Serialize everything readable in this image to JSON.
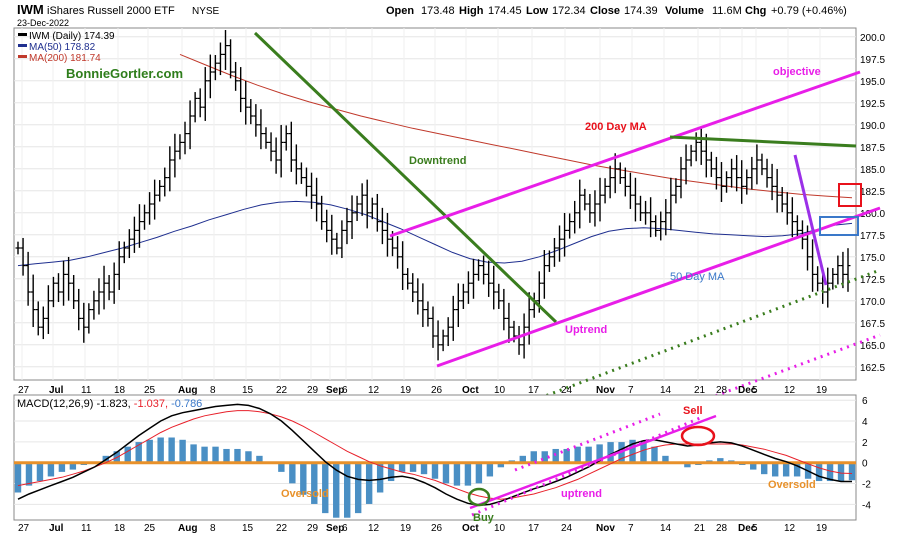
{
  "header": {
    "symbol": "IWM",
    "name": "iShares Russell 2000 ETF",
    "exchange": "NYSE",
    "date": "23-Dec-2022",
    "quote": {
      "open_label": "Open",
      "open": "173.48",
      "high_label": "High",
      "high": "174.45",
      "low_label": "Low",
      "low": "172.34",
      "close_label": "Close",
      "close": "174.39",
      "volume_label": "Volume",
      "volume": "11.6M",
      "chg_label": "Chg",
      "chg": "+0.79 (+0.46%)"
    }
  },
  "legend": {
    "price": "IWM (Daily) 174.39",
    "ma50": "MA(50) 178.82",
    "ma200": "MA(200) 181.74"
  },
  "watermark": "BonnieGortler.com",
  "annotations": {
    "objective": "objective",
    "ma200": "200 Day MA",
    "downtrend": "Downtrend",
    "uptrend": "Uptrend",
    "ma50": "50 Day MA",
    "sell": "Sell",
    "buy": "Buy",
    "macd_uptrend": "uptrend",
    "oversold_left": "Oversold",
    "oversold_right": "Oversold"
  },
  "colors": {
    "up_bar": "#000000",
    "ma50": "#1f2f8f",
    "ma200": "#c0392b",
    "trend_magenta": "#e81ee8",
    "trend_green": "#3a7d1e",
    "macd_line": "#000000",
    "signal_line": "#e8212b",
    "histogram": "#4a8fc4",
    "zero_line": "#e8912a",
    "annotation_red": "#e8111b",
    "annotation_blue": "#3a78c9"
  },
  "chart_data": [
    {
      "type": "ohlc",
      "title": "IWM iShares Russell 2000 ETF NYSE",
      "ylim": [
        161,
        201
      ],
      "y_ticks": [
        "162.5",
        "165.0",
        "167.5",
        "170.0",
        "172.5",
        "175.0",
        "177.5",
        "180.0",
        "182.5",
        "185.0",
        "187.5",
        "190.0",
        "192.5",
        "195.0",
        "197.5",
        "200.0"
      ],
      "x_ticks": [
        "27",
        "Jul",
        "11",
        "18",
        "25",
        "Aug",
        "8",
        "15",
        "22",
        "29",
        "Sep",
        "6",
        "12",
        "19",
        "26",
        "Oct",
        "10",
        "17",
        "24",
        "Nov",
        "7",
        "14",
        "21",
        "28",
        "Dec",
        "5",
        "12",
        "19"
      ],
      "series_close": [
        176,
        174,
        171,
        169,
        167,
        168,
        170,
        172,
        171,
        173,
        172,
        170,
        168,
        167,
        169,
        170,
        171,
        172,
        171,
        173,
        175,
        176,
        177,
        178,
        179,
        180,
        181,
        182,
        183,
        184,
        186,
        187,
        188,
        189,
        191,
        193,
        192,
        195,
        196,
        197,
        198,
        199,
        196,
        195,
        193,
        192,
        191,
        190,
        189,
        188,
        187,
        186,
        188,
        189,
        186,
        185,
        184,
        183,
        182,
        181,
        179,
        178,
        177,
        176,
        178,
        179,
        180,
        181,
        182,
        180,
        181,
        179,
        178,
        177,
        176,
        175,
        173,
        172,
        171,
        170,
        169,
        168,
        166,
        165,
        166,
        167,
        169,
        170,
        171,
        172,
        173,
        174,
        173,
        172,
        171,
        170,
        168,
        167,
        166,
        165,
        167,
        169,
        170,
        172,
        174,
        175,
        176,
        177,
        178,
        179,
        180,
        182,
        181,
        180,
        181,
        182,
        183,
        184,
        185,
        184,
        183,
        182,
        181,
        180,
        180,
        179,
        178,
        179,
        180,
        182,
        183,
        185,
        186,
        187,
        188,
        187,
        186,
        185,
        184,
        183,
        184,
        185,
        184,
        183,
        184,
        185,
        186,
        185,
        184,
        183,
        182,
        181,
        180,
        179,
        178,
        177,
        175,
        173,
        172,
        171,
        172,
        173,
        174,
        173,
        174
      ],
      "ma50": [
        174,
        174.2,
        174.4,
        174.6,
        175,
        175.5,
        176,
        176.6,
        177.2,
        177.9,
        178.5,
        179.2,
        179.8,
        180.4,
        180.9,
        181.2,
        181.3,
        181.2,
        180.9,
        180.4,
        179.8,
        179,
        178.2,
        177.3,
        176.4,
        175.5,
        174.8,
        174.4,
        174.3,
        174.5,
        175,
        175.7,
        176.5,
        177.3,
        177.9,
        178.2,
        178.3,
        178.2,
        178,
        177.8,
        177.6,
        177.5,
        177.4,
        177.3,
        177.4,
        177.6,
        178.1,
        178.6,
        178.8
      ],
      "ma200": [
        198,
        196.8,
        195.6,
        194.5,
        193.5,
        192.6,
        191.8,
        191,
        190.3,
        189.6,
        189,
        188.4,
        187.8,
        187.2,
        186.6,
        186,
        185.4,
        184.9,
        184.4,
        183.9,
        183.5,
        183.1,
        182.7,
        182.4,
        182.1,
        181.9,
        181.7
      ],
      "series": [
        {
          "name": "MA(50)",
          "last": 178.82
        },
        {
          "name": "MA(200)",
          "last": 181.74
        }
      ]
    },
    {
      "type": "macd",
      "title": "MACD(12,26,9)",
      "values": {
        "macd": -1.823,
        "signal": -1.037,
        "histogram": -0.786
      },
      "ylim": [
        -5.5,
        6.5
      ],
      "y_ticks": [
        "6",
        "4",
        "2",
        "0",
        "-2",
        "-4"
      ],
      "x_ticks": [
        "27",
        "Jul",
        "11",
        "18",
        "25",
        "Aug",
        "8",
        "15",
        "22",
        "29",
        "Sep",
        "6",
        "12",
        "19",
        "26",
        "Oct",
        "10",
        "17",
        "24",
        "Nov",
        "7",
        "14",
        "21",
        "28",
        "Dec",
        "5",
        "12",
        "19"
      ],
      "macd": [
        -3.5,
        -3,
        -2.6,
        -2.2,
        -1.8,
        -1.4,
        -0.9,
        -0.4,
        0.3,
        1,
        1.8,
        2.6,
        3.3,
        4,
        4.5,
        4.8,
        5,
        5.2,
        5.4,
        5.5,
        5.6,
        5.5,
        5.2,
        4.7,
        4,
        3.1,
        2.1,
        1.1,
        0.1,
        -0.7,
        -1.3,
        -1.6,
        -1.7,
        -1.6,
        -1.4,
        -1.3,
        -1.5,
        -1.9,
        -2.4,
        -3,
        -3.5,
        -3.9,
        -4.1,
        -4,
        -3.7,
        -3.3,
        -2.9,
        -2.5,
        -2.2,
        -1.8,
        -1.4,
        -0.9,
        -0.4,
        0.2,
        0.8,
        1.3,
        1.8,
        2.1,
        2.2,
        2,
        1.8,
        1.6,
        1.7,
        1.9,
        2,
        1.9,
        1.6,
        1.2,
        0.8,
        0.4,
        0.1,
        -0.3,
        -0.8,
        -1.3,
        -1.6,
        -1.8,
        -1.8
      ],
      "signal": [
        -2.2,
        -2,
        -1.8,
        -1.6,
        -1.4,
        -1.1,
        -0.8,
        -0.4,
        0,
        0.5,
        1.1,
        1.7,
        2.3,
        2.9,
        3.4,
        3.8,
        4.2,
        4.5,
        4.7,
        4.9,
        5,
        5,
        4.9,
        4.7,
        4.4,
        4,
        3.5,
        2.9,
        2.3,
        1.7,
        1.1,
        0.6,
        0.1,
        -0.3,
        -0.6,
        -0.9,
        -1.1,
        -1.4,
        -1.7,
        -2.1,
        -2.5,
        -2.9,
        -3.2,
        -3.4,
        -3.5,
        -3.4,
        -3.2,
        -3,
        -2.7,
        -2.4,
        -2,
        -1.6,
        -1.1,
        -0.6,
        -0.1,
        0.4,
        0.8,
        1.2,
        1.5,
        1.7,
        1.8,
        1.8,
        1.8,
        1.8,
        1.8,
        1.8,
        1.7,
        1.5,
        1.3,
        1,
        0.7,
        0.3,
        -0.1,
        -0.5,
        -0.8,
        -1,
        -1.037
      ]
    }
  ]
}
